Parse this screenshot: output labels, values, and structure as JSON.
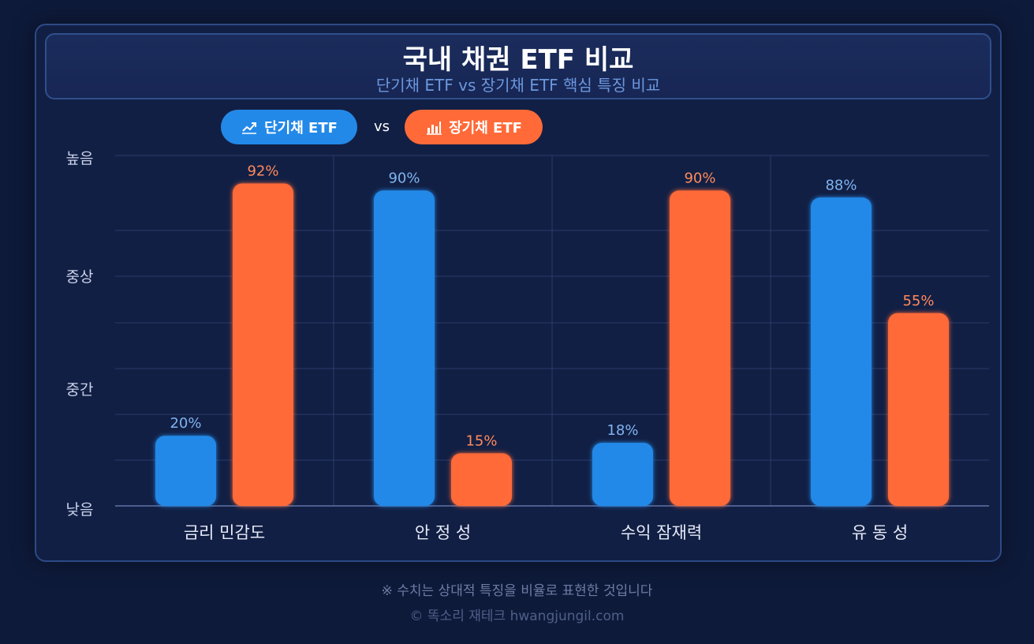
{
  "header": {
    "title": "국내 채권 ETF 비교",
    "subtitle": "단기채 ETF vs 장기채 ETF 핵심 특징 비교"
  },
  "legend": {
    "short_label": "단기채 ETF",
    "vs_label": "vs",
    "long_label": "장기채 ETF",
    "short_icon": "line-trend-icon",
    "long_icon": "bar-chart-icon"
  },
  "chart_data": {
    "type": "bar",
    "categories": [
      "금리 민감도",
      "안 정 성",
      "수익 잠재력",
      "유 동 성"
    ],
    "series": [
      {
        "name": "단기채 ETF",
        "values": [
          20,
          90,
          18,
          88
        ],
        "labels": [
          "20%",
          "90%",
          "18%",
          "88%"
        ],
        "color": "#2389e8",
        "label_color": "#7fb4f0"
      },
      {
        "name": "장기채 ETF",
        "values": [
          92,
          15,
          90,
          55
        ],
        "labels": [
          "92%",
          "15%",
          "90%",
          "55%"
        ],
        "color": "#ff6a38",
        "label_color": "#ff8a5c"
      }
    ],
    "y_tick_labels": [
      "낮음",
      "중간",
      "중상",
      "높음"
    ],
    "ylim": [
      0,
      100
    ],
    "grid": true,
    "legend_position": "top-left"
  },
  "footer": {
    "note": "※ 수치는 상대적 특징을 비율로 표현한 것입니다",
    "credit": "© 똑소리 재테크  hwangjungil.com"
  }
}
